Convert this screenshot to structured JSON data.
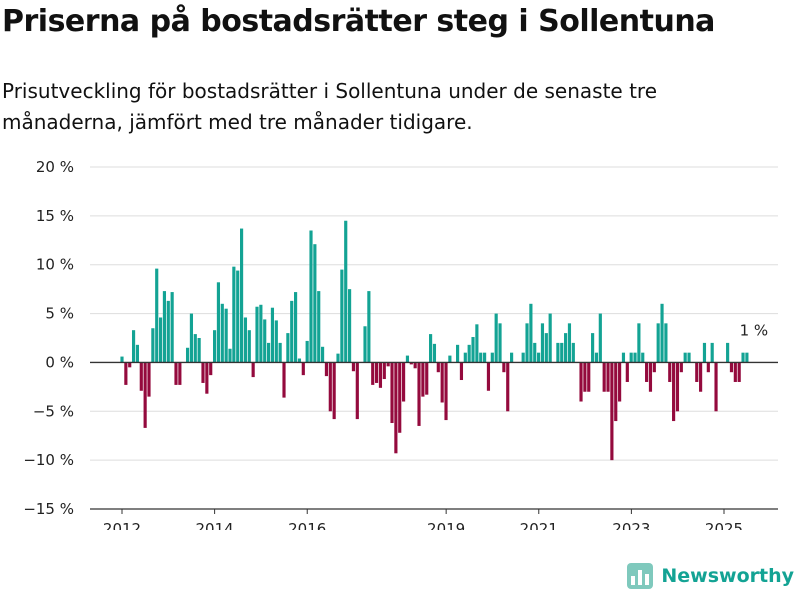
{
  "title": "Priserna på bostadsrätter steg i Sollentuna",
  "subtitle": "Prisutveckling för bostadsrätter i Sollentuna under de senaste tre månaderna, jämfört med tre månader tidigare.",
  "brand": {
    "name": "Newsworthy",
    "icon": "newsworthy-logo-icon"
  },
  "colors": {
    "positive": "#13a394",
    "negative": "#940a3d",
    "grid": "#dddddd",
    "axis": "#333333"
  },
  "chart_data": {
    "type": "bar",
    "title": "Priserna på bostadsrätter steg i Sollentuna",
    "subtitle": "Prisutveckling för bostadsrätter i Sollentuna under de senaste tre månaderna, jämfört med tre månader tidigare.",
    "ylim": [
      -15,
      20
    ],
    "y_ticks": [
      20,
      15,
      10,
      5,
      0,
      -5,
      -10,
      -15
    ],
    "y_tick_labels": [
      "20 %",
      "15 %",
      "10 %",
      "5 %",
      "0 %",
      "−5 %",
      "−10 %",
      "−15 %"
    ],
    "x_ticks": [
      2012,
      2014,
      2016,
      2019,
      2021,
      2023,
      2025
    ],
    "x_tick_labels": [
      "2012",
      "2014",
      "2016",
      "2019",
      "2021",
      "2023",
      "2025"
    ],
    "x_start": 2012.0,
    "x_step_years": 0.0833,
    "grid": true,
    "annotation": {
      "text": "1 %",
      "x": 2025.58,
      "y": 1
    },
    "values": [
      0.6,
      -2.3,
      -0.5,
      3.3,
      1.8,
      -2.9,
      -6.7,
      -3.5,
      3.5,
      9.6,
      4.6,
      7.3,
      6.3,
      7.2,
      -2.3,
      -2.3,
      0,
      1.5,
      5.0,
      2.9,
      2.5,
      -2.1,
      -3.2,
      -1.3,
      3.3,
      8.2,
      6.0,
      5.5,
      1.4,
      9.8,
      9.4,
      13.7,
      4.6,
      3.3,
      -1.5,
      5.7,
      5.9,
      4.4,
      2.0,
      5.6,
      4.3,
      2.0,
      -3.6,
      3.0,
      6.3,
      7.2,
      0.4,
      -1.3,
      2.2,
      13.5,
      12.1,
      7.3,
      1.6,
      -1.4,
      -5.0,
      -5.8,
      0.9,
      9.5,
      14.5,
      7.5,
      -0.9,
      -5.8,
      0,
      3.7,
      7.3,
      -2.3,
      -2.1,
      -2.6,
      -1.7,
      -0.4,
      -6.2,
      -9.3,
      -7.2,
      -4.0,
      0.7,
      -0.2,
      -0.6,
      -6.5,
      -3.5,
      -3.3,
      2.9,
      1.9,
      -1.0,
      -4.1,
      -5.9,
      0.7,
      0,
      1.8,
      -1.8,
      1.0,
      1.8,
      2.6,
      3.9,
      1.0,
      1.0,
      -2.9,
      1.0,
      5.0,
      4.0,
      -1.0,
      -5.0,
      1.0,
      0,
      0,
      1.0,
      4.0,
      6.0,
      2.0,
      1.0,
      4.0,
      3.0,
      5.0,
      0,
      2.0,
      2.0,
      3.0,
      4.0,
      2.0,
      0,
      -4.0,
      -3.0,
      -3.0,
      3.0,
      1.0,
      5.0,
      -3.0,
      -3.0,
      -10.0,
      -6.0,
      -4.0,
      1.0,
      -2.0,
      1.0,
      1.0,
      4.0,
      1.0,
      -2.0,
      -3.0,
      -1.0,
      4.0,
      6.0,
      4.0,
      -2.0,
      -6.0,
      -5.0,
      -1.0,
      1.0,
      1.0,
      0,
      -2.0,
      -3.0,
      2.0,
      -1.0,
      2.0,
      -5.0,
      0,
      0,
      2.0,
      -1.0,
      -2.0,
      -2.0,
      1.0,
      1.0
    ]
  }
}
